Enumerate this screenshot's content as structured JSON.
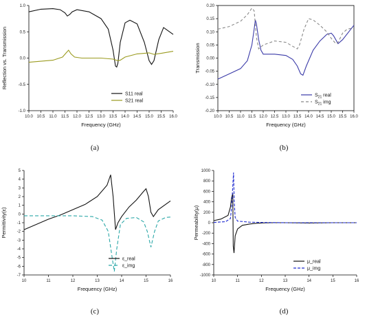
{
  "chart_data": [
    {
      "type": "line",
      "panel_label": "(a)",
      "xlabel": "Frequency (GHz)",
      "ylabel": "Reflection vs. Transmission",
      "xlim": [
        10.0,
        16.0
      ],
      "ylim": [
        -1.0,
        1.0
      ],
      "xticks": [
        "10.0",
        "10.5",
        "11.0",
        "11.5",
        "12.0",
        "12.5",
        "13.0",
        "13.5",
        "14.0",
        "14.5",
        "15.0",
        "15.5",
        "16.0"
      ],
      "yticks": [
        "1.0",
        "0.5",
        "0.0",
        "-0.5",
        "-1.0"
      ],
      "legend_position": "bottom-right",
      "series": [
        {
          "name": "S11 real",
          "color": "#111111",
          "dash": "solid",
          "x": [
            10.0,
            10.5,
            11.0,
            11.3,
            11.5,
            11.6,
            11.7,
            11.8,
            12.0,
            12.5,
            13.0,
            13.3,
            13.5,
            13.6,
            13.65,
            13.7,
            13.8,
            14.0,
            14.2,
            14.5,
            14.8,
            15.0,
            15.1,
            15.2,
            15.4,
            15.6,
            16.0
          ],
          "y": [
            0.88,
            0.93,
            0.94,
            0.92,
            0.86,
            0.8,
            0.83,
            0.88,
            0.92,
            0.88,
            0.75,
            0.55,
            0.15,
            -0.15,
            -0.17,
            -0.1,
            0.3,
            0.67,
            0.72,
            0.65,
            0.3,
            -0.05,
            -0.12,
            -0.05,
            0.35,
            0.58,
            0.45
          ]
        },
        {
          "name": "S21 real",
          "color": "#9a9a1e",
          "dash": "solid",
          "x": [
            10.0,
            10.5,
            11.0,
            11.4,
            11.55,
            11.65,
            11.75,
            11.9,
            12.2,
            12.5,
            13.0,
            13.5,
            13.7,
            13.8,
            14.0,
            14.5,
            15.0,
            15.2,
            15.5,
            16.0
          ],
          "y": [
            -0.08,
            -0.06,
            -0.04,
            0.02,
            0.1,
            0.15,
            0.08,
            0.02,
            0.0,
            0.0,
            0.0,
            -0.02,
            -0.05,
            -0.04,
            0.02,
            0.08,
            0.1,
            0.07,
            0.09,
            0.13
          ]
        }
      ]
    },
    {
      "type": "line",
      "panel_label": "(b)",
      "xlabel": "Frequency (GHz)",
      "ylabel": "Transmission",
      "xlim": [
        10.0,
        16.0
      ],
      "ylim": [
        -0.2,
        0.2
      ],
      "xticks": [
        "10.0",
        "10.5",
        "11.0",
        "11.5",
        "12.0",
        "12.5",
        "13.0",
        "13.5",
        "14.0",
        "14.5",
        "15.0",
        "15.5",
        "16.0"
      ],
      "yticks": [
        "0.20",
        "0.15",
        "0.10",
        "0.05",
        "0.00",
        "-0.05",
        "-0.10",
        "-0.15",
        "-0.20"
      ],
      "legend_position": "bottom-right",
      "series": [
        {
          "name": "S21 real",
          "legend_main": "S",
          "legend_sub": "21",
          "legend_rest": " real",
          "color": "#3a3aa8",
          "dash": "solid",
          "x": [
            10.0,
            10.5,
            11.0,
            11.3,
            11.5,
            11.6,
            11.65,
            11.7,
            11.8,
            11.9,
            12.0,
            12.5,
            13.0,
            13.3,
            13.5,
            13.65,
            13.75,
            13.9,
            14.2,
            14.5,
            14.8,
            15.0,
            15.1,
            15.3,
            15.5,
            16.0
          ],
          "y": [
            -0.08,
            -0.06,
            -0.04,
            -0.01,
            0.05,
            0.11,
            0.145,
            0.13,
            0.07,
            0.03,
            0.015,
            0.015,
            0.01,
            -0.005,
            -0.03,
            -0.06,
            -0.065,
            -0.03,
            0.03,
            0.065,
            0.09,
            0.095,
            0.085,
            0.055,
            0.07,
            0.125
          ]
        },
        {
          "name": "S21 img",
          "legend_main": "S",
          "legend_sub": "21",
          "legend_rest": " img",
          "color": "#888888",
          "dash": "4,3",
          "x": [
            10.0,
            10.5,
            11.0,
            11.3,
            11.5,
            11.6,
            11.7,
            11.8,
            12.0,
            12.5,
            13.0,
            13.3,
            13.5,
            13.6,
            13.7,
            13.8,
            14.0,
            14.2,
            14.5,
            14.8,
            15.0,
            15.2,
            15.3,
            15.5,
            15.7,
            16.0
          ],
          "y": [
            0.11,
            0.12,
            0.14,
            0.165,
            0.19,
            0.18,
            0.08,
            0.035,
            0.05,
            0.065,
            0.06,
            0.045,
            0.035,
            0.05,
            0.08,
            0.11,
            0.15,
            0.145,
            0.125,
            0.1,
            0.075,
            0.055,
            0.06,
            0.095,
            0.11,
            0.115
          ]
        }
      ]
    },
    {
      "type": "line",
      "panel_label": "(c)",
      "xlabel": "Frequency (GHz)",
      "ylabel": "Permittivity(ε)",
      "xlim": [
        10,
        16
      ],
      "ylim": [
        -7,
        5
      ],
      "xticks": [
        "10",
        "11",
        "12",
        "13",
        "14",
        "15",
        "16"
      ],
      "yticks": [
        "5",
        "4",
        "3",
        "2",
        "1",
        "0",
        "-1",
        "-2",
        "-3",
        "-4",
        "-5",
        "-6",
        "-7"
      ],
      "legend_position": "bottom-right",
      "series": [
        {
          "name": "ε_real",
          "color": "#111111",
          "dash": "solid",
          "x": [
            10.0,
            10.5,
            11.0,
            11.5,
            12.0,
            12.5,
            13.0,
            13.4,
            13.55,
            13.65,
            13.75,
            13.85,
            14.0,
            14.3,
            14.6,
            14.9,
            15.0,
            15.1,
            15.2,
            15.3,
            15.5,
            16.0
          ],
          "y": [
            -1.8,
            -1.2,
            -0.6,
            -0.1,
            0.5,
            1.1,
            2.0,
            3.3,
            4.5,
            2.0,
            -1.8,
            -1.0,
            -0.3,
            0.8,
            1.6,
            2.6,
            2.9,
            2.0,
            0.2,
            -0.3,
            0.5,
            1.5
          ]
        },
        {
          "name": "ε_img",
          "color": "#2aa7a7",
          "dash": "5,3",
          "x": [
            10.0,
            11.0,
            12.0,
            12.8,
            13.2,
            13.45,
            13.6,
            13.7,
            13.8,
            13.95,
            14.2,
            14.6,
            14.9,
            15.05,
            15.2,
            15.35,
            15.5,
            15.8,
            16.0
          ],
          "y": [
            -0.2,
            -0.2,
            -0.2,
            -0.3,
            -0.7,
            -2.0,
            -4.8,
            -6.6,
            -4.0,
            -1.2,
            -0.5,
            -0.4,
            -0.9,
            -2.0,
            -3.8,
            -2.0,
            -0.8,
            -0.4,
            -0.35
          ]
        }
      ]
    },
    {
      "type": "line",
      "panel_label": "(d)",
      "xlabel": "Frequency (GHz)",
      "ylabel": "Permeability(μ)",
      "xlim": [
        10,
        16
      ],
      "ylim": [
        -1000,
        1000
      ],
      "xticks": [
        "10",
        "11",
        "12",
        "13",
        "14",
        "15",
        "16"
      ],
      "yticks": [
        "1000",
        "800",
        "600",
        "400",
        "200",
        "0",
        "-200",
        "-400",
        "-600",
        "-800",
        "-1000"
      ],
      "legend_position": "bottom-right",
      "series": [
        {
          "name": "μ_real",
          "color": "#111111",
          "dash": "solid",
          "x": [
            10.0,
            10.3,
            10.6,
            10.7,
            10.75,
            10.8,
            10.82,
            10.85,
            10.9,
            11.0,
            11.2,
            11.5,
            11.8,
            12.0,
            12.5,
            13.0,
            14.0,
            15.0,
            16.0
          ],
          "y": [
            40,
            70,
            140,
            300,
            480,
            560,
            -450,
            -580,
            -250,
            -120,
            -50,
            -25,
            -10,
            -5,
            0,
            0,
            -5,
            0,
            0
          ]
        },
        {
          "name": "μ_img",
          "color": "#1e2ad0",
          "dash": "4,2",
          "x": [
            10.0,
            10.5,
            10.7,
            10.75,
            10.8,
            10.83,
            10.86,
            10.9,
            11.0,
            11.5,
            12.0,
            13.0,
            14.0,
            15.0,
            16.0
          ],
          "y": [
            5,
            20,
            80,
            300,
            700,
            960,
            400,
            100,
            30,
            10,
            5,
            0,
            0,
            0,
            0
          ]
        }
      ]
    }
  ]
}
